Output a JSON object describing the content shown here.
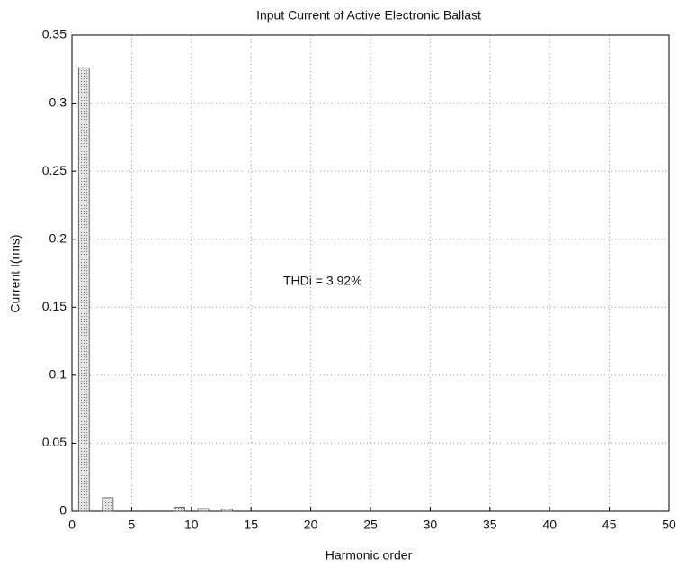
{
  "chart_data": {
    "type": "bar",
    "title": "Input Current of Active Electronic Ballast",
    "x_label": "Harmonic order",
    "y_label": "Current I(rms)",
    "annotations": [
      "THDi = 3.92%"
    ],
    "x": [
      1,
      3,
      9,
      11,
      13
    ],
    "values": [
      0.326,
      0.01,
      0.003,
      0.002,
      0.0015
    ],
    "color": "#d0d0d0",
    "xlim": [
      0,
      50
    ],
    "xticks": [
      0,
      5,
      10,
      15,
      20,
      25,
      30,
      35,
      40,
      45,
      50
    ],
    "ylim": [
      0,
      0.35
    ],
    "yticks": [
      0,
      0.05,
      0.1,
      0.15,
      0.2,
      0.25,
      0.3,
      0.35
    ],
    "grid": true
  }
}
